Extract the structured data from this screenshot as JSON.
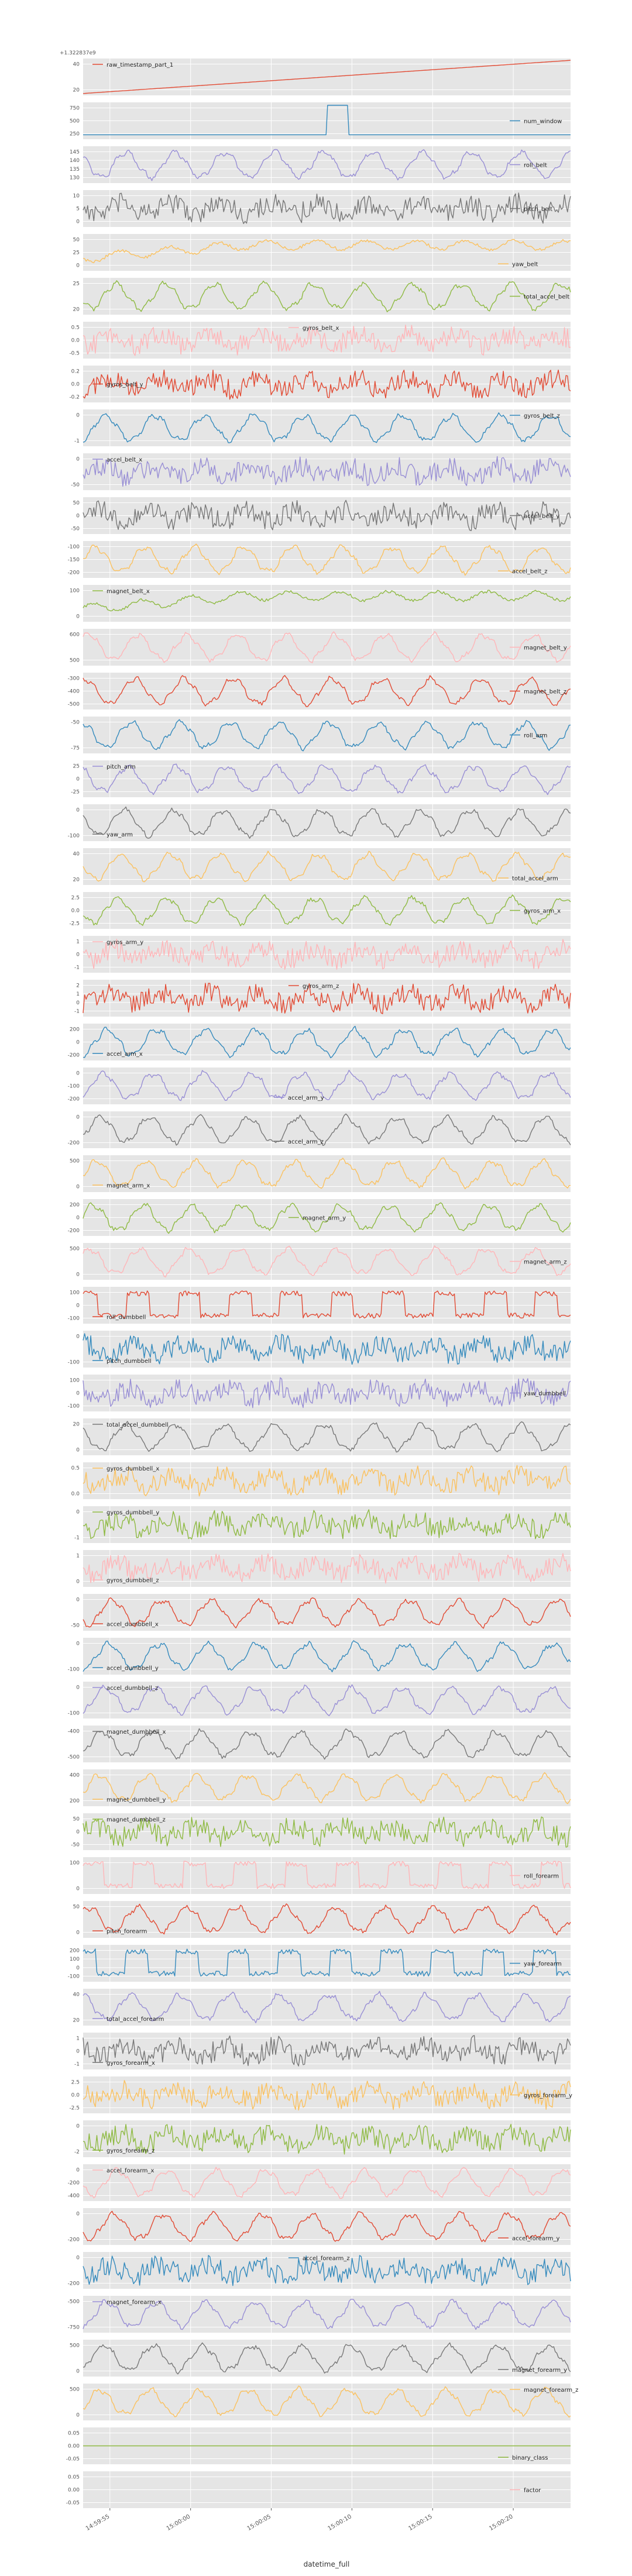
{
  "figure": {
    "x_axis_label": "datetime_full",
    "x_tick_labels": [
      "14:59:55",
      "15:00:00",
      "15:00:05",
      "15:00:10",
      "15:00:15",
      "15:00:20"
    ],
    "top_offset_label": "+1.322837e9",
    "background_color": "#e5e5e5",
    "grid_color": "#ffffff"
  },
  "chart_data": {
    "type": "line",
    "layout": "stacked subplots sharing the x-axis",
    "x_axis": {
      "label": "datetime_full",
      "tick_labels": [
        "14:59:55",
        "15:00:00",
        "15:00:05",
        "15:00:10",
        "15:00:15",
        "15:00:20"
      ]
    },
    "panels": [
      {
        "name": "raw_timestamp_part_1",
        "color": "#E24A33",
        "legend": "top-left",
        "yticks": [
          "40",
          "20"
        ],
        "offset": "+1.322837e9",
        "pattern": "ramp",
        "yrange": [
          20,
          45
        ]
      },
      {
        "name": "num_window",
        "color": "#348ABD",
        "legend": "right",
        "yticks": [
          "750",
          "500",
          "250"
        ],
        "pattern": "pulse",
        "yrange": [
          100,
          800
        ]
      },
      {
        "name": "roll_belt",
        "color": "#988ED5",
        "legend": "right",
        "yticks": [
          "145",
          "140",
          "135",
          "130"
        ],
        "pattern": "wave",
        "yrange": [
          125,
          150
        ]
      },
      {
        "name": "pitch_belt",
        "color": "#777777",
        "legend": "right",
        "yticks": [
          "10",
          "5",
          "0"
        ],
        "pattern": "noisy",
        "yrange": [
          -3,
          14
        ]
      },
      {
        "name": "yaw_belt",
        "color": "#FBC15E",
        "legend": "bottom-right",
        "yticks": [
          "50",
          "25",
          "0"
        ],
        "pattern": "rise",
        "yrange": [
          -10,
          60
        ]
      },
      {
        "name": "total_accel_belt",
        "color": "#8EBA42",
        "legend": "right",
        "yticks": [
          "25",
          "20"
        ],
        "pattern": "wave",
        "yrange": [
          15,
          30
        ]
      },
      {
        "name": "gyros_belt_x",
        "color": "#FFB5B8",
        "legend": "top-center",
        "yticks": [
          "0.5",
          "0.0",
          "-0.5"
        ],
        "pattern": "noisy",
        "yrange": [
          -0.8,
          0.8
        ]
      },
      {
        "name": "gyros_belt_y",
        "color": "#E24A33",
        "legend": "left",
        "yticks": [
          "0.2",
          "0.0",
          "-0.2"
        ],
        "pattern": "noisy",
        "yrange": [
          -0.35,
          0.35
        ]
      },
      {
        "name": "gyros_belt_z",
        "color": "#348ABD",
        "legend": "top-right",
        "yticks": [
          "0",
          "-1"
        ],
        "pattern": "wave",
        "yrange": [
          -1.5,
          0.8
        ]
      },
      {
        "name": "accel_belt_x",
        "color": "#988ED5",
        "legend": "top-left",
        "yticks": [
          "0",
          "-50"
        ],
        "pattern": "noisy",
        "yrange": [
          -80,
          30
        ]
      },
      {
        "name": "accel_belt_y",
        "color": "#777777",
        "legend": "right",
        "yticks": [
          "50",
          "0",
          "-50"
        ],
        "pattern": "noisy",
        "yrange": [
          -90,
          90
        ]
      },
      {
        "name": "accel_belt_z",
        "color": "#FBC15E",
        "legend": "bottom-right",
        "yticks": [
          "-100",
          "-150",
          "-200"
        ],
        "pattern": "wave",
        "yrange": [
          -220,
          -80
        ]
      },
      {
        "name": "magnet_belt_x",
        "color": "#8EBA42",
        "legend": "top-left",
        "yticks": [
          "100",
          "0"
        ],
        "pattern": "rise",
        "yrange": [
          -40,
          140
        ]
      },
      {
        "name": "magnet_belt_y",
        "color": "#FFB5B8",
        "legend": "right",
        "yticks": [
          "600",
          "500"
        ],
        "pattern": "wave",
        "yrange": [
          450,
          650
        ]
      },
      {
        "name": "magnet_belt_z",
        "color": "#E24A33",
        "legend": "right",
        "yticks": [
          "-300",
          "-400",
          "-500"
        ],
        "pattern": "wave",
        "yrange": [
          -560,
          -260
        ]
      },
      {
        "name": "roll_arm",
        "color": "#348ABD",
        "legend": "right",
        "yticks": [
          "-50",
          "-75"
        ],
        "pattern": "wave",
        "yrange": [
          -95,
          -30
        ]
      },
      {
        "name": "pitch_arm",
        "color": "#988ED5",
        "legend": "top-left",
        "yticks": [
          "25",
          "0",
          "-25"
        ],
        "pattern": "wave",
        "yrange": [
          -45,
          40
        ]
      },
      {
        "name": "yaw_arm",
        "color": "#777777",
        "legend": "bottom-left",
        "yticks": [
          "0",
          "-100"
        ],
        "pattern": "wave",
        "yrange": [
          -160,
          50
        ]
      },
      {
        "name": "total_accel_arm",
        "color": "#FBC15E",
        "legend": "bottom-right",
        "yticks": [
          "40",
          "20"
        ],
        "pattern": "wave",
        "yrange": [
          5,
          50
        ]
      },
      {
        "name": "gyros_arm_x",
        "color": "#8EBA42",
        "legend": "right",
        "yticks": [
          "2.5",
          "0.0",
          "-2.5"
        ],
        "pattern": "wave",
        "yrange": [
          -3.5,
          3.5
        ]
      },
      {
        "name": "gyros_arm_y",
        "color": "#FFB5B8",
        "legend": "top-left",
        "yticks": [
          "1",
          "0",
          "-1"
        ],
        "pattern": "noisy",
        "yrange": [
          -1.5,
          1.5
        ]
      },
      {
        "name": "gyros_arm_z",
        "color": "#E24A33",
        "legend": "top-center",
        "yticks": [
          "2",
          "1",
          "0",
          "-1"
        ],
        "pattern": "noisy",
        "yrange": [
          -1.5,
          2.5
        ]
      },
      {
        "name": "accel_arm_x",
        "color": "#348ABD",
        "legend": "bottom-left",
        "yticks": [
          "200",
          "0",
          "-200"
        ],
        "pattern": "wave",
        "yrange": [
          -300,
          250
        ]
      },
      {
        "name": "accel_arm_y",
        "color": "#988ED5",
        "legend": "bottom-center",
        "yticks": [
          "0",
          "-100",
          "-200"
        ],
        "pattern": "wave",
        "yrange": [
          -260,
          80
        ]
      },
      {
        "name": "accel_arm_z",
        "color": "#777777",
        "legend": "bottom-center",
        "yticks": [
          "0",
          "-200"
        ],
        "pattern": "wave",
        "yrange": [
          -320,
          100
        ]
      },
      {
        "name": "magnet_arm_x",
        "color": "#FBC15E",
        "legend": "bottom-left",
        "yticks": [
          "500",
          "0"
        ],
        "pattern": "wave",
        "yrange": [
          -250,
          750
        ]
      },
      {
        "name": "magnet_arm_y",
        "color": "#8EBA42",
        "legend": "center",
        "yticks": [
          "200",
          "0",
          "-200"
        ],
        "pattern": "wave",
        "yrange": [
          -300,
          330
        ]
      },
      {
        "name": "magnet_arm_z",
        "color": "#FFB5B8",
        "legend": "right",
        "yticks": [
          "500",
          "0"
        ],
        "pattern": "wave",
        "yrange": [
          -300,
          700
        ]
      },
      {
        "name": "roll_dumbbell",
        "color": "#E24A33",
        "legend": "bottom-left",
        "yticks": [
          "100",
          "0",
          "-100"
        ],
        "pattern": "square",
        "yrange": [
          -150,
          150
        ]
      },
      {
        "name": "pitch_dumbbell",
        "color": "#348ABD",
        "legend": "bottom-left",
        "yticks": [
          "0",
          "-100"
        ],
        "pattern": "noisy",
        "yrange": [
          -150,
          60
        ]
      },
      {
        "name": "yaw_dumbbell",
        "color": "#988ED5",
        "legend": "right",
        "yticks": [
          "100",
          "0",
          "-100"
        ],
        "pattern": "noisy",
        "yrange": [
          -150,
          150
        ]
      },
      {
        "name": "total_accel_dumbbell",
        "color": "#777777",
        "legend": "top-left",
        "yticks": [
          "20",
          "0"
        ],
        "pattern": "wave",
        "yrange": [
          -5,
          35
        ]
      },
      {
        "name": "gyros_dumbbell_x",
        "color": "#FBC15E",
        "legend": "top-left",
        "yticks": [
          "0.5",
          "0.0"
        ],
        "pattern": "noisy",
        "yrange": [
          -0.4,
          0.8
        ]
      },
      {
        "name": "gyros_dumbbell_y",
        "color": "#8EBA42",
        "legend": "top-left",
        "yticks": [
          "0",
          "-1"
        ],
        "pattern": "noisy",
        "yrange": [
          -1.5,
          0.8
        ]
      },
      {
        "name": "gyros_dumbbell_z",
        "color": "#FFB5B8",
        "legend": "bottom-left",
        "yticks": [
          "1",
          "0"
        ],
        "pattern": "noisy",
        "yrange": [
          -0.8,
          1.6
        ]
      },
      {
        "name": "accel_dumbbell_x",
        "color": "#E24A33",
        "legend": "bottom-left",
        "yticks": [
          "0",
          "-50"
        ],
        "pattern": "wave",
        "yrange": [
          -80,
          30
        ]
      },
      {
        "name": "accel_dumbbell_y",
        "color": "#348ABD",
        "legend": "bottom-left",
        "yticks": [
          "0",
          "-100"
        ],
        "pattern": "wave",
        "yrange": [
          -150,
          50
        ]
      },
      {
        "name": "accel_dumbbell_z",
        "color": "#988ED5",
        "legend": "top-left",
        "yticks": [
          "0",
          "-100"
        ],
        "pattern": "wave",
        "yrange": [
          -150,
          60
        ]
      },
      {
        "name": "magnet_dumbbell_x",
        "color": "#777777",
        "legend": "top-left",
        "yticks": [
          "-400",
          "-500"
        ],
        "pattern": "wave",
        "yrange": [
          -560,
          -330
        ]
      },
      {
        "name": "magnet_dumbbell_y",
        "color": "#FBC15E",
        "legend": "bottom-left",
        "yticks": [
          "400",
          "200"
        ],
        "pattern": "wave",
        "yrange": [
          100,
          500
        ]
      },
      {
        "name": "magnet_dumbbell_z",
        "color": "#8EBA42",
        "legend": "top-left",
        "yticks": [
          "50",
          "0",
          "-50"
        ],
        "pattern": "noisy",
        "yrange": [
          -80,
          80
        ]
      },
      {
        "name": "roll_forearm",
        "color": "#FFB5B8",
        "legend": "right",
        "yticks": [
          "100",
          "0"
        ],
        "pattern": "square",
        "yrange": [
          -60,
          180
        ]
      },
      {
        "name": "pitch_forearm",
        "color": "#E24A33",
        "legend": "bottom-left",
        "yticks": [
          "50",
          "0"
        ],
        "pattern": "wave",
        "yrange": [
          -20,
          70
        ]
      },
      {
        "name": "yaw_forearm",
        "color": "#348ABD",
        "legend": "right",
        "yticks": [
          "200",
          "100",
          "0",
          "-100"
        ],
        "pattern": "square",
        "yrange": [
          -150,
          220
        ]
      },
      {
        "name": "total_accel_forearm",
        "color": "#988ED5",
        "legend": "bottom-left",
        "yticks": [
          "40",
          "20"
        ],
        "pattern": "wave",
        "yrange": [
          10,
          55
        ]
      },
      {
        "name": "gyros_forearm_x",
        "color": "#777777",
        "legend": "bottom-left",
        "yticks": [
          "1",
          "0",
          "-1"
        ],
        "pattern": "noisy",
        "yrange": [
          -1.5,
          1.5
        ]
      },
      {
        "name": "gyros_forearm_y",
        "color": "#FBC15E",
        "legend": "right",
        "yticks": [
          "2.5",
          "0.0",
          "-2.5"
        ],
        "pattern": "noisy",
        "yrange": [
          -3.5,
          3.5
        ]
      },
      {
        "name": "gyros_forearm_z",
        "color": "#8EBA42",
        "legend": "bottom-left",
        "yticks": [
          "0",
          "-2"
        ],
        "pattern": "noisy",
        "yrange": [
          -3,
          1.5
        ]
      },
      {
        "name": "accel_forearm_x",
        "color": "#FFB5B8",
        "legend": "top-left",
        "yticks": [
          "0",
          "-200",
          "-400"
        ],
        "pattern": "wave",
        "yrange": [
          -450,
          100
        ]
      },
      {
        "name": "accel_forearm_y",
        "color": "#E24A33",
        "legend": "bottom-right",
        "yticks": [
          "0",
          "-200"
        ],
        "pattern": "wave",
        "yrange": [
          -300,
          150
        ]
      },
      {
        "name": "accel_forearm_z",
        "color": "#348ABD",
        "legend": "top-center",
        "yticks": [
          "0",
          "-200"
        ],
        "pattern": "noisy",
        "yrange": [
          -300,
          100
        ]
      },
      {
        "name": "magnet_forearm_x",
        "color": "#988ED5",
        "legend": "top-left",
        "yticks": [
          "-500",
          "-750"
        ],
        "pattern": "wave",
        "yrange": [
          -850,
          -350
        ]
      },
      {
        "name": "magnet_forearm_y",
        "color": "#777777",
        "legend": "bottom-right",
        "yticks": [
          "500",
          "0"
        ],
        "pattern": "wave",
        "yrange": [
          -200,
          800
        ]
      },
      {
        "name": "magnet_forearm_z",
        "color": "#FBC15E",
        "legend": "top-right",
        "yticks": [
          "500",
          "0"
        ],
        "pattern": "wave",
        "yrange": [
          -200,
          700
        ]
      },
      {
        "name": "binary_class",
        "color": "#8EBA42",
        "legend": "bottom-right",
        "yticks": [
          "0.05",
          "0.00",
          "-0.05"
        ],
        "pattern": "flat",
        "yrange": [
          -0.06,
          0.06
        ]
      },
      {
        "name": "factor",
        "color": "#FFB5B8",
        "legend": "right",
        "yticks": [
          "0.05",
          "0.00",
          "-0.05"
        ],
        "pattern": "empty",
        "yrange": [
          -0.06,
          0.06
        ]
      }
    ]
  }
}
